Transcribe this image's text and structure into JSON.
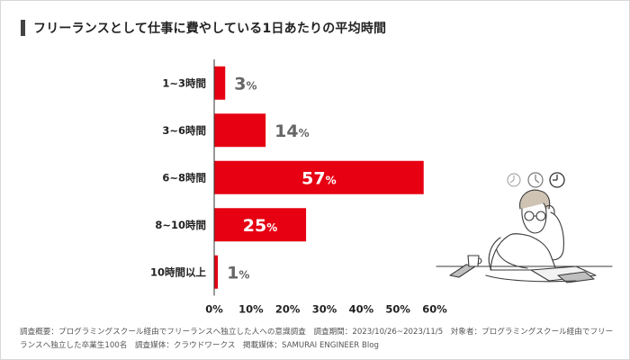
{
  "title": "フリーランスとして仕事に費やしている1日あたりの平均時間",
  "footnote": "調査概要：プログラミングスクール経由でフリーランスへ独立した人への意識調査　調査期間：2023/10/26~2023/11/5　対象者：プログラミングスクール経由でフリーランスへ独立した卒業生100名　調査媒体：クラウドワークス　掲載媒体：SAMURAI ENGINEER Blog",
  "colors": {
    "bar": "#e60012",
    "label_outside": "#666666",
    "label_inside": "#ffffff",
    "axis": "#333333",
    "title_accent": "#444444"
  },
  "illustration": "person-thinking-at-desk-with-clocks",
  "chart_data": {
    "type": "bar",
    "orientation": "horizontal",
    "categories": [
      "1~3時間",
      "3~6時間",
      "6~8時間",
      "8~10時間",
      "10時間以上"
    ],
    "values": [
      3,
      14,
      57,
      25,
      1
    ],
    "unit": "%",
    "xlim": [
      0,
      60
    ],
    "xticks": [
      "0%",
      "10%",
      "20%",
      "30%",
      "40%",
      "50%",
      "60%"
    ],
    "xlabel": "",
    "ylabel": "",
    "grid": false,
    "legend": "none"
  }
}
